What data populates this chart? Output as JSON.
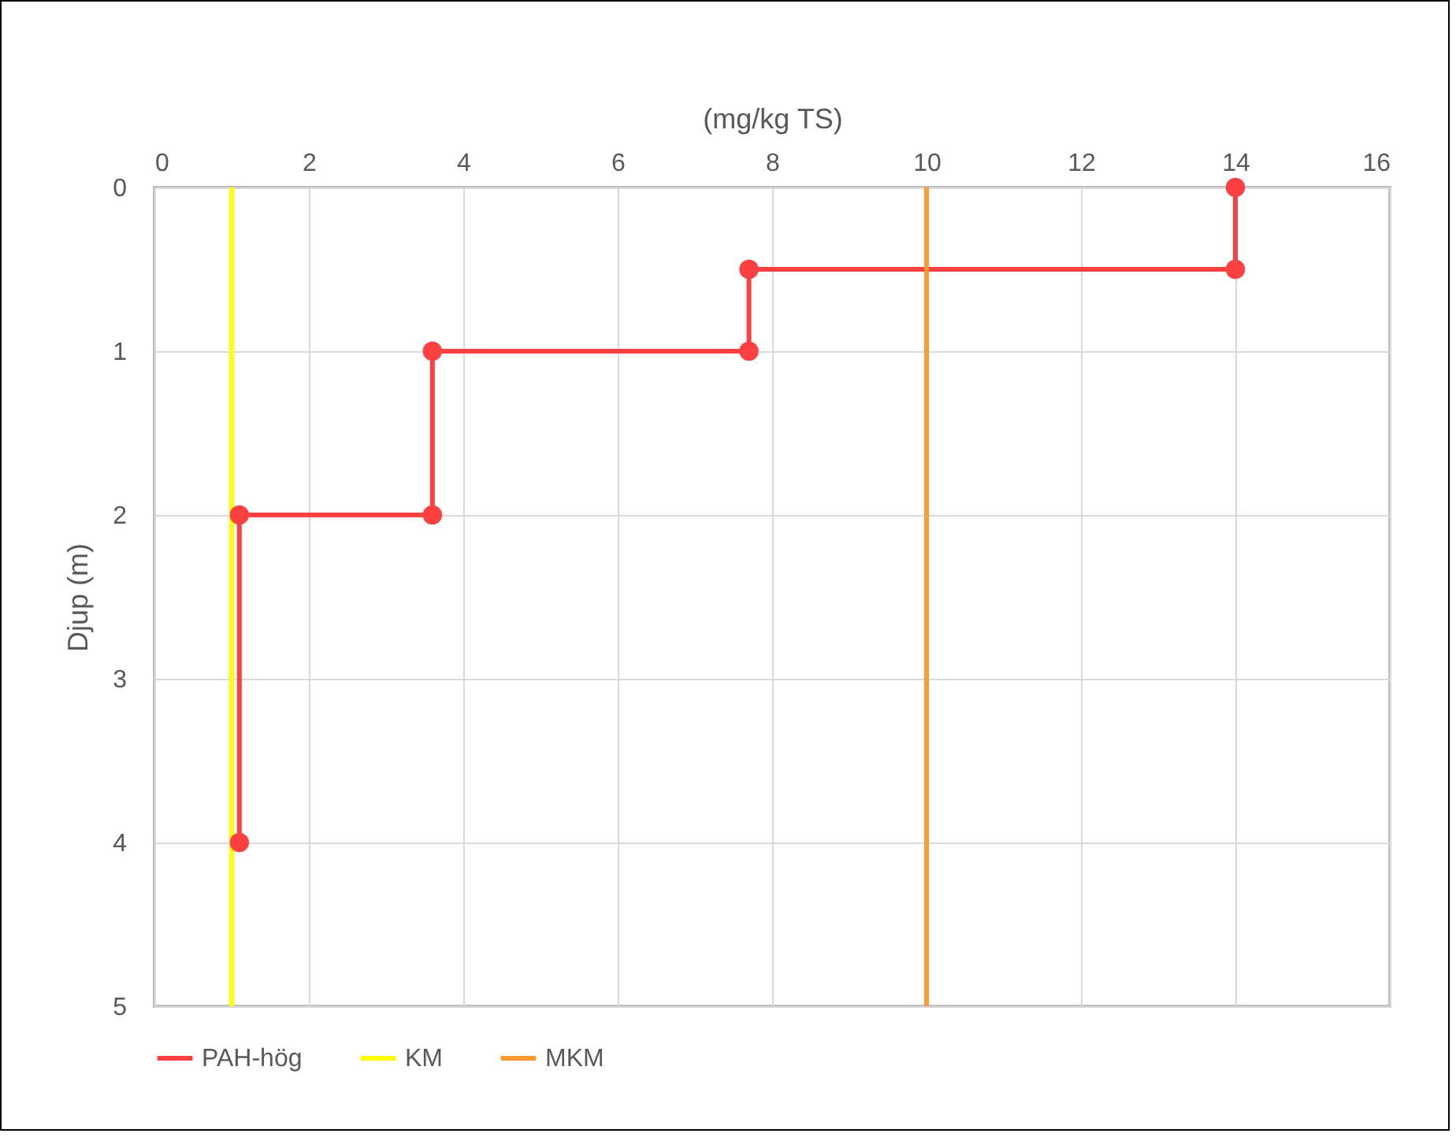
{
  "chart_data": {
    "type": "line",
    "xlabel": "(mg/kg TS)",
    "ylabel": "Djup (m)",
    "xlim": [
      0,
      16
    ],
    "xticks": [
      0,
      2,
      4,
      6,
      8,
      10,
      12,
      14,
      16
    ],
    "ylim": [
      5,
      0
    ],
    "yticks": [
      0,
      1,
      2,
      3,
      4,
      5
    ],
    "grid": true,
    "legend": "bottom",
    "series": [
      {
        "name": "PAH-hög",
        "color": "#ff4040",
        "marker": "circle",
        "x": [
          14,
          14,
          7.7,
          7.7,
          3.6,
          3.6,
          1.1,
          1.1
        ],
        "values": [
          0,
          0.5,
          0.5,
          1,
          1,
          2,
          2,
          4
        ]
      },
      {
        "name": "KM",
        "color": "#ffff00",
        "marker": "none",
        "x": [
          1,
          1
        ],
        "values": [
          0,
          5
        ]
      },
      {
        "name": "MKM",
        "color": "#ff9933",
        "marker": "none",
        "x": [
          10,
          10
        ],
        "values": [
          0,
          5
        ]
      }
    ]
  }
}
